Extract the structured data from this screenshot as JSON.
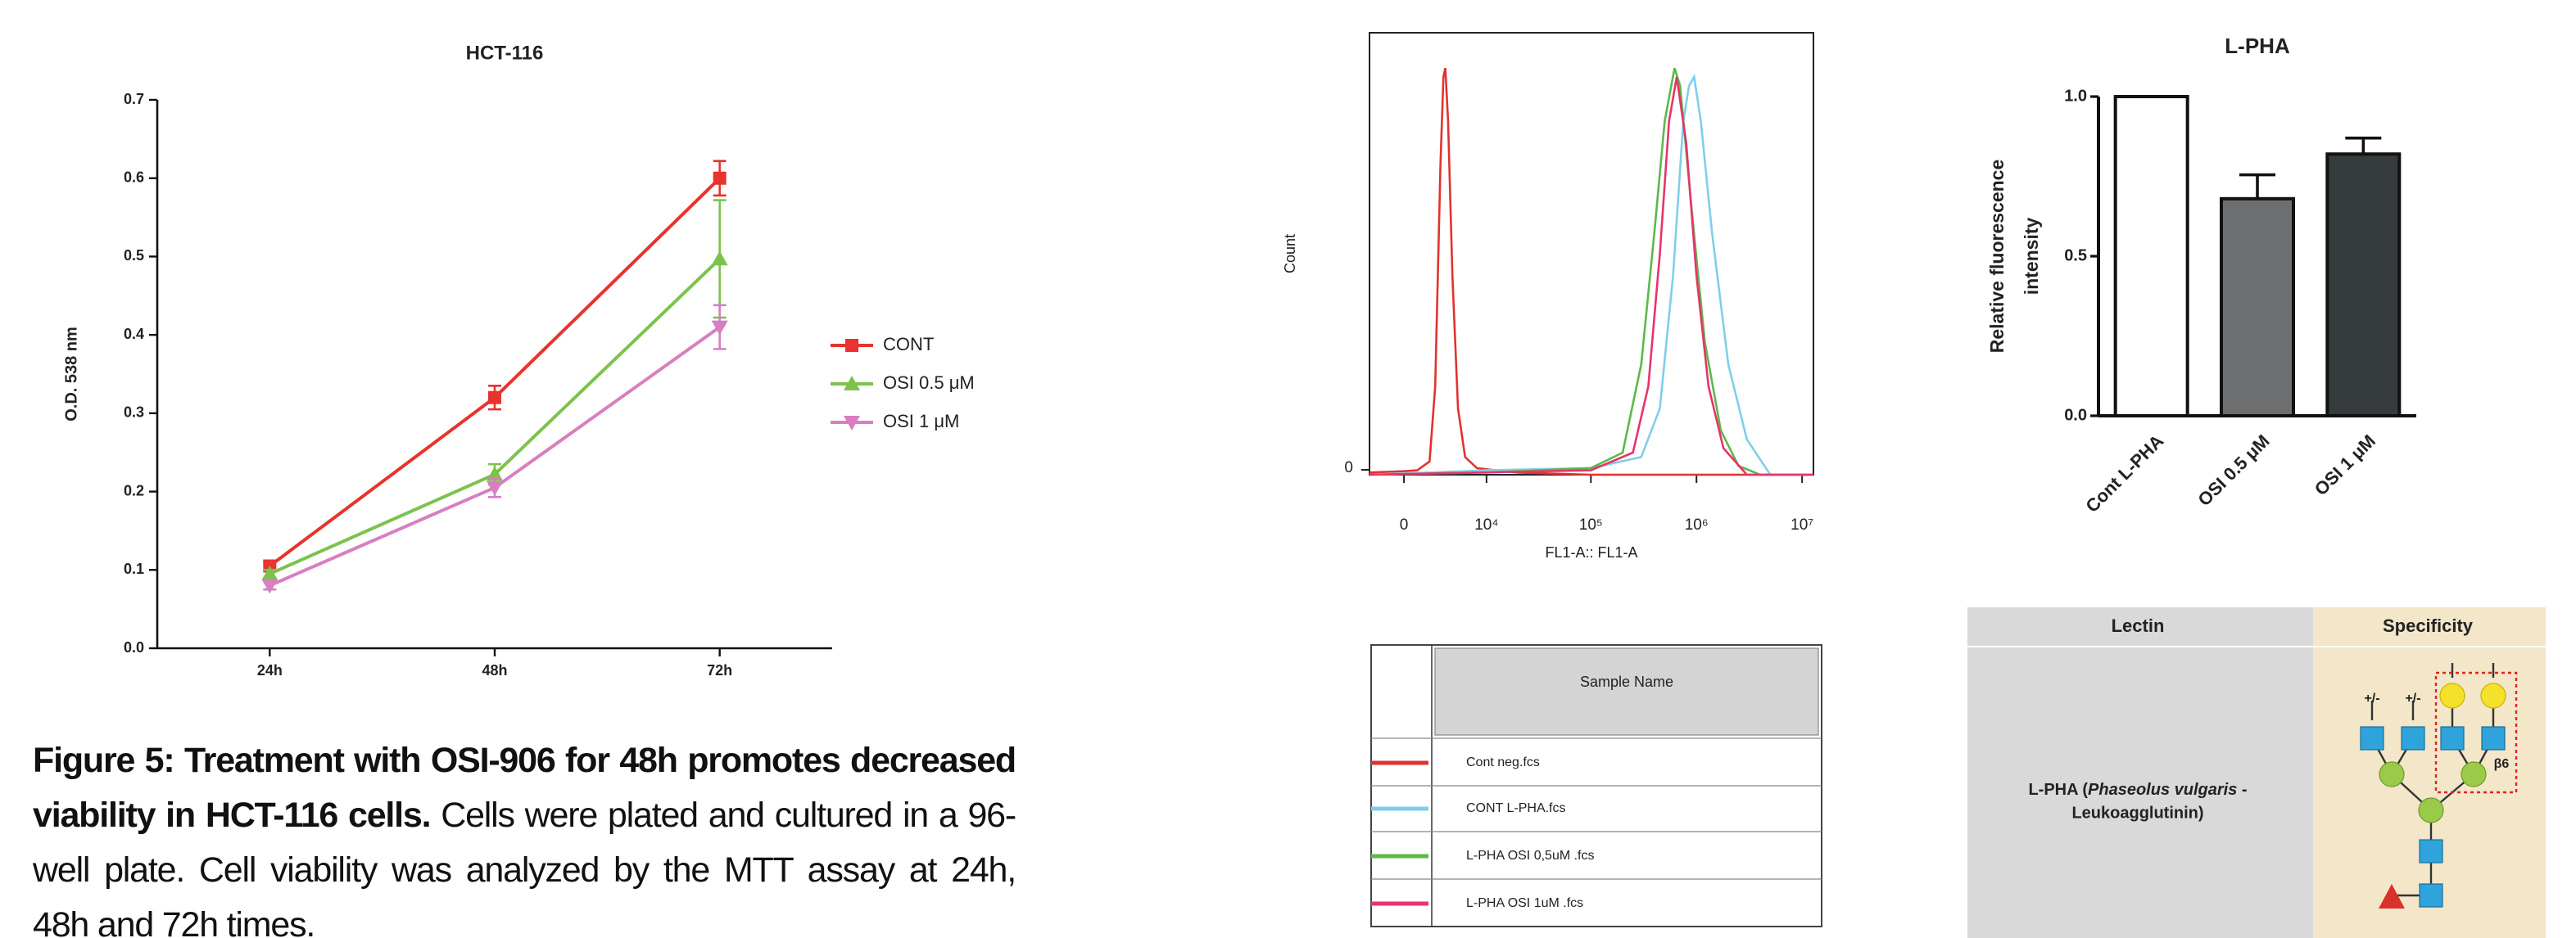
{
  "chart_data": [
    {
      "type": "line",
      "title": "HCT-116",
      "ylabel": "O.D. 538 nm",
      "categories": [
        "24h",
        "48h",
        "72h"
      ],
      "series": [
        {
          "name": "CONT",
          "color": "#e8332e",
          "marker": "square",
          "values": [
            0.105,
            0.32,
            0.6
          ],
          "errors": [
            0.005,
            0.015,
            0.022
          ]
        },
        {
          "name": "OSI 0.5 μM",
          "color": "#7cc24d",
          "marker": "triangle-up",
          "values": [
            0.095,
            0.222,
            0.497
          ],
          "errors": [
            0.005,
            0.013,
            0.075
          ]
        },
        {
          "name": "OSI 1 μM",
          "color": "#d77fc0",
          "marker": "triangle-down",
          "values": [
            0.08,
            0.205,
            0.41
          ],
          "errors": [
            0.005,
            0.012,
            0.028
          ]
        }
      ],
      "ylim": [
        0,
        0.7
      ],
      "yticks": [
        {
          "value": 0,
          "label": "0.0"
        },
        0.1,
        0.2,
        0.3,
        0.4,
        0.5,
        0.6,
        0.7
      ],
      "legend": "right"
    },
    {
      "type": "line",
      "xlabel": "FL1-A:: FL1-A",
      "ylabel": "Count",
      "xscale": "biexponential",
      "legend_title": "Sample Name",
      "series": [
        {
          "name": "Cont neg.fcs",
          "color": "#e0332e",
          "x": [
            -2800,
            0,
            1000,
            2000,
            2500,
            3000,
            3300,
            3500,
            3800,
            4300,
            5000,
            6000,
            8000,
            12000,
            20000,
            100000,
            1000000,
            12800000
          ],
          "values": [
            0.5,
            0.8,
            1,
            3,
            20,
            70,
            90,
            92,
            80,
            45,
            15,
            4,
            1.5,
            1,
            0.5,
            0,
            0,
            0
          ]
        },
        {
          "name": "CONT L-PHA.fcs",
          "color": "#7fcfe8",
          "x": [
            -2800,
            10000,
            100000,
            300000,
            450000,
            600000,
            750000,
            850000,
            950000,
            1100000,
            1400000,
            2000000,
            3000000,
            5000000,
            12800000
          ],
          "values": [
            0,
            1,
            1.5,
            4,
            15,
            45,
            80,
            88,
            90,
            80,
            55,
            25,
            8,
            0,
            0
          ]
        },
        {
          "name": "L-PHA OSI  0,5uM .fcs",
          "color": "#5cb84a",
          "x": [
            -2800,
            10000,
            100000,
            200000,
            300000,
            400000,
            500000,
            620000,
            700000,
            900000,
            1200000,
            1700000,
            2500000,
            4000000,
            12800000
          ],
          "values": [
            0,
            0.5,
            1.5,
            5,
            25,
            55,
            80,
            92,
            88,
            60,
            30,
            10,
            2,
            0,
            0
          ]
        },
        {
          "name": "L-PHA OSI  1uM .fcs",
          "color": "#e8336b",
          "x": [
            -2800,
            100000,
            250000,
            350000,
            450000,
            550000,
            650000,
            800000,
            1000000,
            1300000,
            1800000,
            3000000,
            12800000
          ],
          "values": [
            0,
            1,
            5,
            20,
            50,
            80,
            90,
            75,
            45,
            20,
            6,
            0,
            0
          ]
        }
      ],
      "xlim": [
        -2800,
        12800000
      ],
      "xticks": [
        0,
        {
          "value": 10000,
          "label": "10⁴"
        },
        {
          "value": 100000,
          "label": "10⁵"
        },
        {
          "value": 1000000,
          "label": "10⁶"
        },
        {
          "value": 10000000,
          "label": "10⁷"
        }
      ],
      "ylim": [
        0,
        100
      ],
      "yticks": [
        0
      ]
    },
    {
      "type": "bar",
      "title": "L-PHA",
      "ylabel": [
        "Relative fluorescence",
        "intensity"
      ],
      "categories": [
        "Cont L-PHA",
        "OSI 0.5 μM",
        "OSI 1 μM"
      ],
      "values": [
        1.0,
        0.68,
        0.82
      ],
      "errors": [
        null,
        0.075,
        0.05
      ],
      "colors": [
        "#ffffff",
        "#6d6e70",
        "#363b3d"
      ],
      "ylim": [
        0,
        1.0
      ],
      "yticks": [
        {
          "value": 0,
          "label": "0.0"
        },
        0.5,
        {
          "value": 1,
          "label": "1.0"
        }
      ]
    }
  ],
  "caption": {
    "bold": "Figure 5: Treatment with OSI-906 for 48h promotes decreased viability in HCT-116 cells.",
    "text": " Cells were plated and cultured in a 96-well plate. Cell viability was analyzed by the MTT assay at 24h, 48h and 72h times."
  },
  "lectin_table": {
    "headers": [
      "Lectin",
      "Specificity"
    ],
    "lectin_line1": [
      "L-PHA (",
      "Phaseolus vulgaris",
      " -"
    ],
    "lectin_line2": "Leukoagglutinin)",
    "glycan_labels": [
      "+/-",
      "+/-",
      "β6"
    ]
  }
}
